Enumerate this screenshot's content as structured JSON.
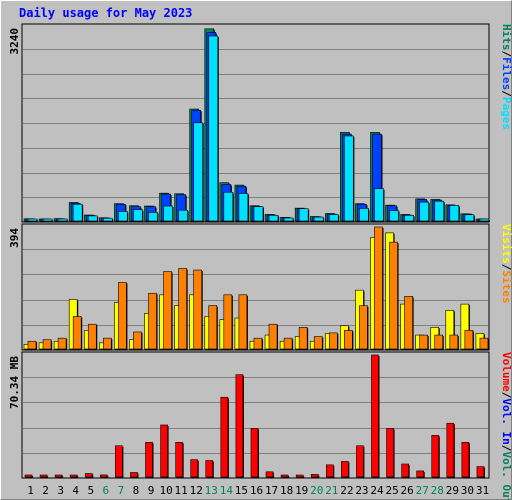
{
  "title": "Daily usage for May 2023",
  "colors": {
    "hits": "#00805c",
    "files": "#0040ff",
    "pages": "#00e0ff",
    "visits": "#ffff00",
    "sites": "#ff8000",
    "volume": "#ff0000",
    "vol_in": "#0000ff",
    "vol_out": "#00805c",
    "weekend_day": "#00805c",
    "weekday_day": "#000000"
  },
  "chart_data": [
    {
      "type": "bar",
      "panel": "hits-files-pages",
      "ylabel": "3240",
      "ylim": [
        0,
        3240
      ],
      "grid": true,
      "categories": [
        "1",
        "2",
        "3",
        "4",
        "5",
        "6",
        "7",
        "8",
        "9",
        "10",
        "11",
        "12",
        "13",
        "14",
        "15",
        "16",
        "17",
        "18",
        "19",
        "20",
        "21",
        "22",
        "23",
        "24",
        "25",
        "26",
        "27",
        "28",
        "29",
        "30",
        "31"
      ],
      "legend": [
        "Hits",
        "/",
        "Files",
        "/",
        "Pages"
      ],
      "series": [
        {
          "name": "Hits",
          "values": [
            38,
            32,
            40,
            310,
            100,
            55,
            290,
            255,
            250,
            465,
            455,
            1870,
            3210,
            640,
            600,
            255,
            110,
            60,
            215,
            75,
            125,
            1480,
            290,
            1480,
            265,
            110,
            370,
            360,
            270,
            120,
            0
          ]
        },
        {
          "name": "Files",
          "values": [
            30,
            28,
            35,
            295,
            92,
            50,
            280,
            240,
            240,
            450,
            440,
            1850,
            3150,
            610,
            580,
            245,
            100,
            55,
            205,
            70,
            115,
            1450,
            280,
            1450,
            255,
            100,
            360,
            350,
            260,
            115,
            0
          ]
        },
        {
          "name": "Pages",
          "values": [
            25,
            25,
            28,
            280,
            85,
            45,
            160,
            190,
            145,
            250,
            180,
            1640,
            3090,
            480,
            460,
            240,
            95,
            50,
            205,
            65,
            108,
            1420,
            210,
            540,
            175,
            95,
            315,
            330,
            260,
            105,
            0
          ]
        }
      ]
    },
    {
      "type": "bar",
      "panel": "visits-sites",
      "ylabel": "394",
      "ylim": [
        0,
        394
      ],
      "grid": true,
      "categories": [
        "1",
        "2",
        "3",
        "4",
        "5",
        "6",
        "7",
        "8",
        "9",
        "10",
        "11",
        "12",
        "13",
        "14",
        "15",
        "16",
        "17",
        "18",
        "19",
        "20",
        "21",
        "22",
        "23",
        "24",
        "25",
        "26",
        "27",
        "28",
        "29",
        "30",
        "31"
      ],
      "legend": [
        "Visits",
        "/",
        "Sites"
      ],
      "series": [
        {
          "name": "Visits",
          "values": [
            15,
            20,
            25,
            160,
            60,
            20,
            150,
            30,
            115,
            175,
            140,
            175,
            105,
            95,
            100,
            25,
            45,
            25,
            40,
            25,
            50,
            75,
            190,
            360,
            375,
            145,
            45,
            70,
            125,
            145,
            50
          ]
        },
        {
          "name": "Sites",
          "values": [
            25,
            30,
            35,
            105,
            80,
            35,
            215,
            55,
            180,
            250,
            260,
            255,
            140,
            175,
            175,
            35,
            80,
            35,
            70,
            40,
            52,
            60,
            140,
            394,
            345,
            170,
            45,
            45,
            45,
            60,
            35
          ]
        }
      ]
    },
    {
      "type": "bar",
      "panel": "volume",
      "ylabel": "70.34 MB",
      "ylim": [
        0,
        70.34
      ],
      "grid": true,
      "categories": [
        "1",
        "2",
        "3",
        "4",
        "5",
        "6",
        "7",
        "8",
        "9",
        "10",
        "11",
        "12",
        "13",
        "14",
        "15",
        "16",
        "17",
        "18",
        "19",
        "20",
        "21",
        "22",
        "23",
        "24",
        "25",
        "26",
        "27",
        "28",
        "29",
        "30",
        "31"
      ],
      "legend": [
        "Volume",
        "/",
        "Vol. In",
        "/",
        "Vol. Out"
      ],
      "series": [
        {
          "name": "Volume",
          "values": [
            0.9,
            0.8,
            0.9,
            0.9,
            2.0,
            1.2,
            18.0,
            2.6,
            20.0,
            30.0,
            20.0,
            10.0,
            9.5,
            46.0,
            59.0,
            28.0,
            3.0,
            0.7,
            1.0,
            1.5,
            7.0,
            9.0,
            18.0,
            70.34,
            28.0,
            7.5,
            3.5,
            24.0,
            31.0,
            20.0,
            6.0
          ]
        }
      ]
    }
  ]
}
